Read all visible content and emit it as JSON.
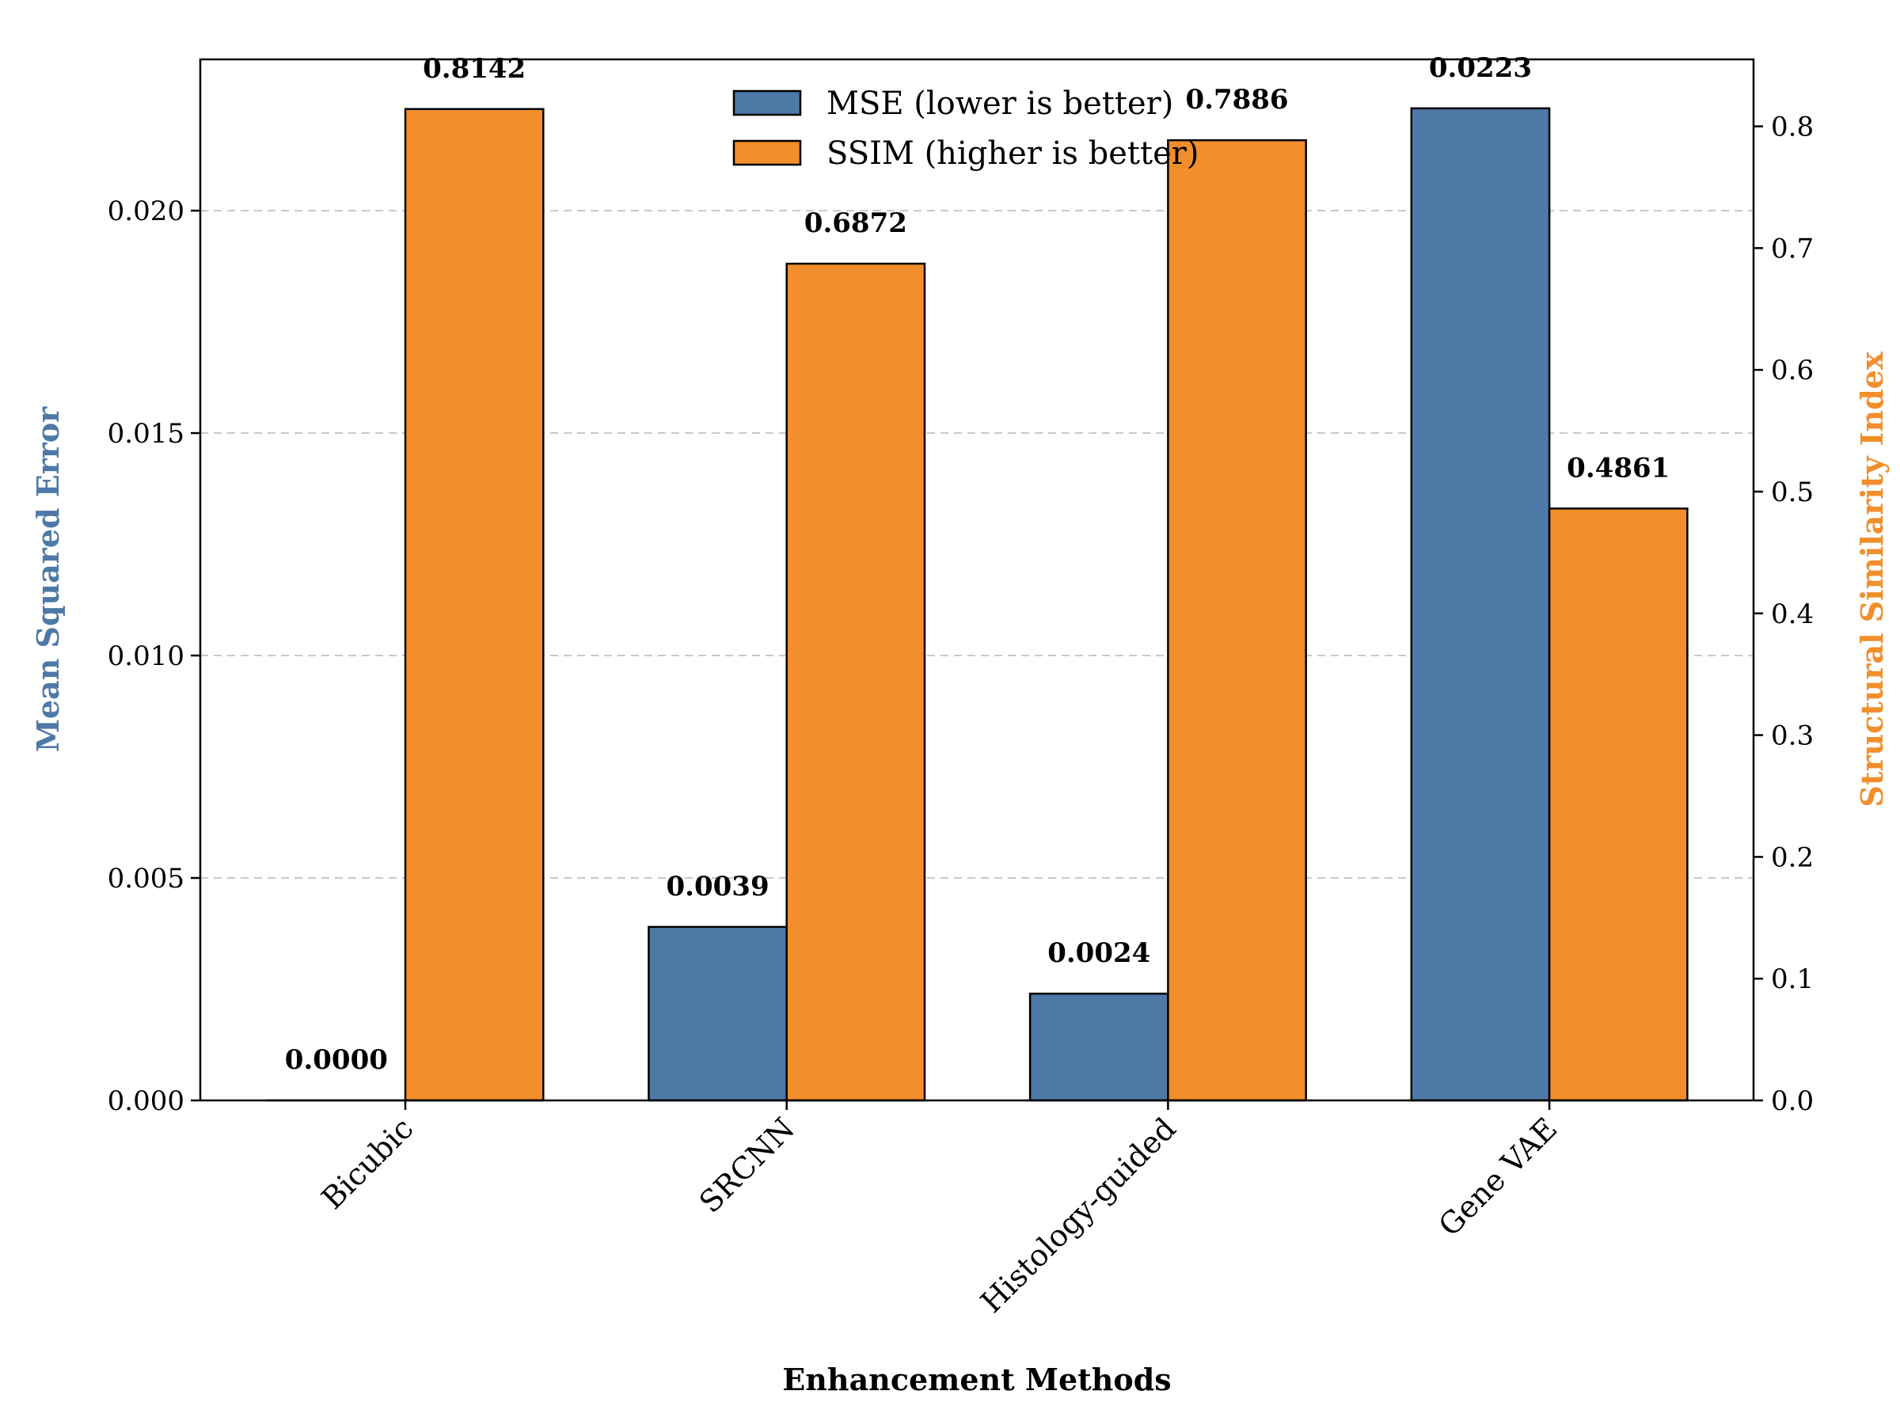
{
  "chart_data": {
    "type": "bar",
    "categories": [
      "Bicubic",
      "SRCNN",
      "Histology-guided",
      "Gene VAE"
    ],
    "series": [
      {
        "name": "MSE (lower is better)",
        "axis": "left",
        "color": "#4e79a7",
        "values": [
          0.0,
          0.0039,
          0.0024,
          0.0223
        ],
        "labels": [
          "0.0000",
          "0.0039",
          "0.0024",
          "0.0223"
        ]
      },
      {
        "name": "SSIM (higher is better)",
        "axis": "right",
        "color": "#f28e2b",
        "values": [
          0.8142,
          0.6872,
          0.7886,
          0.4861
        ],
        "labels": [
          "0.8142",
          "0.6872",
          "0.7886",
          "0.4861"
        ]
      }
    ],
    "xlabel": "Enhancement Methods",
    "ylabel": "Mean Squared Error",
    "ylabel_color": "#4e79a7",
    "y2label": "Structural Similarity Index",
    "y2label_color": "#f28e2b",
    "ylim": [
      0,
      0.0234
    ],
    "y2lim": [
      0,
      0.855
    ],
    "yticks": [
      "0.000",
      "0.005",
      "0.010",
      "0.015",
      "0.020"
    ],
    "y2ticks": [
      "0.0",
      "0.1",
      "0.2",
      "0.3",
      "0.4",
      "0.5",
      "0.6",
      "0.7",
      "0.8"
    ],
    "grid": "horizontal dashed (left axis)",
    "legend_position": "upper center"
  }
}
